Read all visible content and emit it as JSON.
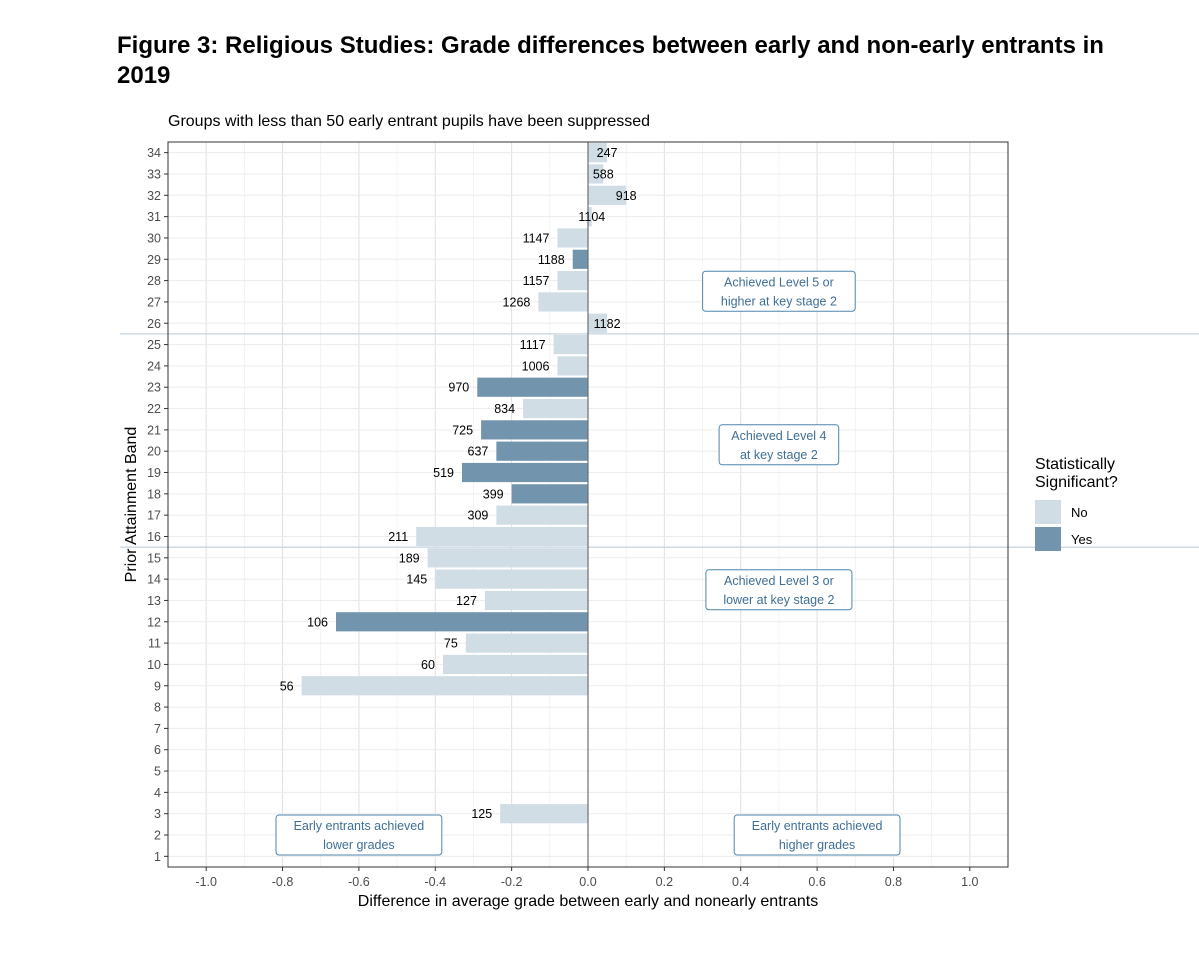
{
  "figure": {
    "title": "Figure 3: Religious Studies: Grade differences between early and non-early entrants in 2019",
    "subtitle": "Groups with less than 50 early entrant pupils have been suppressed"
  },
  "chart_data": {
    "type": "bar",
    "orientation": "horizontal",
    "xlabel": "Difference in average grade between early and nonearly entrants",
    "ylabel": "Prior Attainment Band",
    "xlim": [
      -1.1,
      1.1
    ],
    "x_ticks": [
      "-1.0",
      "-0.8",
      "-0.6",
      "-0.4",
      "-0.2",
      "0.0",
      "0.2",
      "0.4",
      "0.6",
      "0.8",
      "1.0"
    ],
    "y_ticks": [
      "1",
      "2",
      "3",
      "4",
      "5",
      "6",
      "7",
      "8",
      "9",
      "10",
      "11",
      "12",
      "13",
      "14",
      "15",
      "16",
      "17",
      "18",
      "19",
      "20",
      "21",
      "22",
      "23",
      "24",
      "25",
      "26",
      "27",
      "28",
      "29",
      "30",
      "31",
      "32",
      "33",
      "34"
    ],
    "grid": true,
    "colors": {
      "No": "#d1dde5",
      "Yes": "#7394ad"
    },
    "legend": {
      "title": "Statistically Significant?",
      "position": "right",
      "entries": [
        {
          "label": "No",
          "color": "#d1dde5"
        },
        {
          "label": "Yes",
          "color": "#7394ad"
        }
      ]
    },
    "bars": [
      {
        "band": 34,
        "value": 0.05,
        "label": "247",
        "significant": "No"
      },
      {
        "band": 33,
        "value": 0.04,
        "label": "588",
        "significant": "No"
      },
      {
        "band": 32,
        "value": 0.1,
        "label": "918",
        "significant": "No"
      },
      {
        "band": 31,
        "value": 0.01,
        "label": "1104",
        "significant": "No"
      },
      {
        "band": 30,
        "value": -0.08,
        "label": "1147",
        "significant": "No"
      },
      {
        "band": 29,
        "value": -0.04,
        "label": "1188",
        "significant": "Yes"
      },
      {
        "band": 28,
        "value": -0.08,
        "label": "1157",
        "significant": "No"
      },
      {
        "band": 27,
        "value": -0.13,
        "label": "1268",
        "significant": "No"
      },
      {
        "band": 26,
        "value": 0.05,
        "label": "1182",
        "significant": "No"
      },
      {
        "band": 25,
        "value": -0.09,
        "label": "1117",
        "significant": "No"
      },
      {
        "band": 24,
        "value": -0.08,
        "label": "1006",
        "significant": "No"
      },
      {
        "band": 23,
        "value": -0.29,
        "label": "970",
        "significant": "Yes"
      },
      {
        "band": 22,
        "value": -0.17,
        "label": "834",
        "significant": "No"
      },
      {
        "band": 21,
        "value": -0.28,
        "label": "725",
        "significant": "Yes"
      },
      {
        "band": 20,
        "value": -0.24,
        "label": "637",
        "significant": "Yes"
      },
      {
        "band": 19,
        "value": -0.33,
        "label": "519",
        "significant": "Yes"
      },
      {
        "band": 18,
        "value": -0.2,
        "label": "399",
        "significant": "Yes"
      },
      {
        "band": 17,
        "value": -0.24,
        "label": "309",
        "significant": "No"
      },
      {
        "band": 16,
        "value": -0.45,
        "label": "211",
        "significant": "No"
      },
      {
        "band": 15,
        "value": -0.42,
        "label": "189",
        "significant": "No"
      },
      {
        "band": 14,
        "value": -0.4,
        "label": "145",
        "significant": "No"
      },
      {
        "band": 13,
        "value": -0.27,
        "label": "127",
        "significant": "No"
      },
      {
        "band": 12,
        "value": -0.66,
        "label": "106",
        "significant": "Yes"
      },
      {
        "band": 11,
        "value": -0.32,
        "label": "75",
        "significant": "No"
      },
      {
        "band": 10,
        "value": -0.38,
        "label": "60",
        "significant": "No"
      },
      {
        "band": 9,
        "value": -0.75,
        "label": "56",
        "significant": "No"
      },
      {
        "band": 3,
        "value": -0.23,
        "label": "125",
        "significant": "No"
      }
    ],
    "reference_lines": [
      {
        "band_boundary": 15.5
      },
      {
        "band_boundary": 25.5
      }
    ],
    "annotations": [
      {
        "text": [
          "Achieved Level 5 or",
          "higher at key stage 2"
        ],
        "x": 0.5,
        "band": 27.5
      },
      {
        "text": [
          "Achieved Level 4",
          "at key stage 2"
        ],
        "x": 0.5,
        "band": 20.3
      },
      {
        "text": [
          "Achieved Level 3 or",
          "lower at key stage 2"
        ],
        "x": 0.5,
        "band": 13.5
      },
      {
        "text": [
          "Early entrants achieved",
          "lower grades"
        ],
        "x": -0.6,
        "band": 2.0
      },
      {
        "text": [
          "Early entrants achieved",
          "higher grades"
        ],
        "x": 0.6,
        "band": 2.0
      }
    ]
  }
}
